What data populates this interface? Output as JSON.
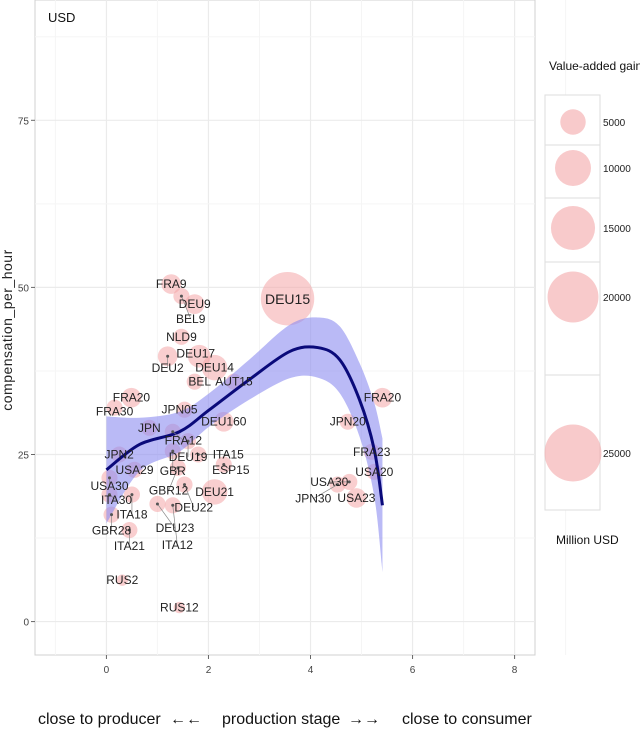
{
  "chart_data": {
    "type": "scatter",
    "subtitle": "USD",
    "ylabel": "compensation_per_hour",
    "xlabel_left": "close to producer",
    "xlabel_arrow_left": "←←",
    "xlabel_center": "production stage",
    "xlabel_arrow_right": "→→",
    "xlabel_right": "close to consumer",
    "xlim": [
      -1.4,
      8.4
    ],
    "ylim": [
      -5,
      93
    ],
    "xticks": [
      0,
      2,
      4,
      6,
      8
    ],
    "yticks": [
      0,
      25,
      50,
      75
    ],
    "grid": true,
    "points": [
      {
        "label": "FRA9",
        "x": 1.27,
        "y": 50.5,
        "size": 3000
      },
      {
        "label": "BEL9",
        "x": 1.47,
        "y": 48.7,
        "size": 2000
      },
      {
        "label": "DEU9",
        "x": 1.73,
        "y": 47.5,
        "size": 3000
      },
      {
        "label": "NLD9",
        "x": 1.47,
        "y": 42.6,
        "size": 2000
      },
      {
        "label": "DEU2",
        "x": 1.2,
        "y": 39.7,
        "size": 3000
      },
      {
        "label": "DEU17",
        "x": 1.82,
        "y": 39.7,
        "size": 4000
      },
      {
        "label": "DEU14",
        "x": 2.12,
        "y": 38.0,
        "size": 5000
      },
      {
        "label": "BEL",
        "x": 1.73,
        "y": 35.9,
        "size": 2000
      },
      {
        "label": "AUT15",
        "x": 2.5,
        "y": 35.9,
        "size": 2000
      },
      {
        "label": "FRA20",
        "x": 0.49,
        "y": 33.5,
        "size": 3000
      },
      {
        "label": "FRA30",
        "x": 0.16,
        "y": 32.0,
        "size": 2000
      },
      {
        "label": "JPN05",
        "x": 1.53,
        "y": 31.7,
        "size": 2000
      },
      {
        "label": "DEU160",
        "x": 2.3,
        "y": 29.9,
        "size": 3000
      },
      {
        "label": "JPN",
        "x": 0.84,
        "y": 29.0,
        "size": 2000
      },
      {
        "label": "FRA12",
        "x": 1.3,
        "y": 28.4,
        "size": 2000
      },
      {
        "label": "DEU19",
        "x": 1.6,
        "y": 27.0,
        "size": 2000
      },
      {
        "label": "GBR",
        "x": 1.3,
        "y": 25.5,
        "size": 2000
      },
      {
        "label": "ITA15",
        "x": 1.8,
        "y": 25.0,
        "size": 2000
      },
      {
        "label": "JPN2",
        "x": 0.25,
        "y": 25.0,
        "size": 2000
      },
      {
        "label": "USA29",
        "x": 0.55,
        "y": 22.7,
        "size": 2000
      },
      {
        "label": "USA30",
        "x": 0.06,
        "y": 21.5,
        "size": 2000
      },
      {
        "label": "ESP15",
        "x": 2.3,
        "y": 23.5,
        "size": 2000
      },
      {
        "label": "GBR12",
        "x": 1.4,
        "y": 23.0,
        "size": 2000
      },
      {
        "label": "DEU22",
        "x": 1.53,
        "y": 20.5,
        "size": 2000
      },
      {
        "label": "DEU21",
        "x": 2.12,
        "y": 19.4,
        "size": 5000
      },
      {
        "label": "ITA30",
        "x": 0.06,
        "y": 19.0,
        "size": 2000
      },
      {
        "label": "ITA18",
        "x": 0.5,
        "y": 19.0,
        "size": 2000
      },
      {
        "label": "DEU23",
        "x": 1.0,
        "y": 17.6,
        "size": 2000
      },
      {
        "label": "ITA12",
        "x": 1.3,
        "y": 17.4,
        "size": 2000
      },
      {
        "label": "GBR28",
        "x": 0.1,
        "y": 16.0,
        "size": 2000
      },
      {
        "label": "ITA21",
        "x": 0.45,
        "y": 13.7,
        "size": 2000
      },
      {
        "label": "RUS2",
        "x": 0.31,
        "y": 6.2,
        "size": 1000
      },
      {
        "label": "RUS12",
        "x": 1.43,
        "y": 2.1,
        "size": 1000
      },
      {
        "label": "DEU15",
        "x": 3.55,
        "y": 48.3,
        "size": 22000
      },
      {
        "label": "FRA20",
        "x": 5.41,
        "y": 33.5,
        "size": 3000
      },
      {
        "label": "JPN20",
        "x": 4.73,
        "y": 29.9,
        "size": 2000
      },
      {
        "label": "FRA23",
        "x": 5.2,
        "y": 25.4,
        "size": 2000
      },
      {
        "label": "USA20",
        "x": 5.25,
        "y": 22.4,
        "size": 2000
      },
      {
        "label": "USA30",
        "x": 4.76,
        "y": 20.9,
        "size": 2000
      },
      {
        "label": "JPN30",
        "x": 4.53,
        "y": 20.5,
        "size": 2000
      },
      {
        "label": "USA23",
        "x": 4.9,
        "y": 18.5,
        "size": 3000
      }
    ],
    "smooth": {
      "x": [
        0,
        0.65,
        1.43,
        2.02,
        2.8,
        3.59,
        4.14,
        4.57,
        4.96,
        5.25,
        5.41
      ],
      "y": [
        22.7,
        26.5,
        28.4,
        31.7,
        36.2,
        40.4,
        41.0,
        39.2,
        33.2,
        25.7,
        17.4
      ],
      "se": [
        8,
        4,
        3,
        2.5,
        3,
        4,
        4.5,
        5,
        5.5,
        7,
        10
      ]
    },
    "legend": {
      "title": "Value-added gain",
      "placement": "right",
      "entries": [
        5000,
        10000,
        15000,
        20000,
        25000
      ],
      "unit": "Million USD"
    },
    "colors": {
      "bubble": "#f4a6a8",
      "line": "#0a0a7a",
      "band": "#8c8cf0",
      "grid": "#ebebeb"
    }
  }
}
